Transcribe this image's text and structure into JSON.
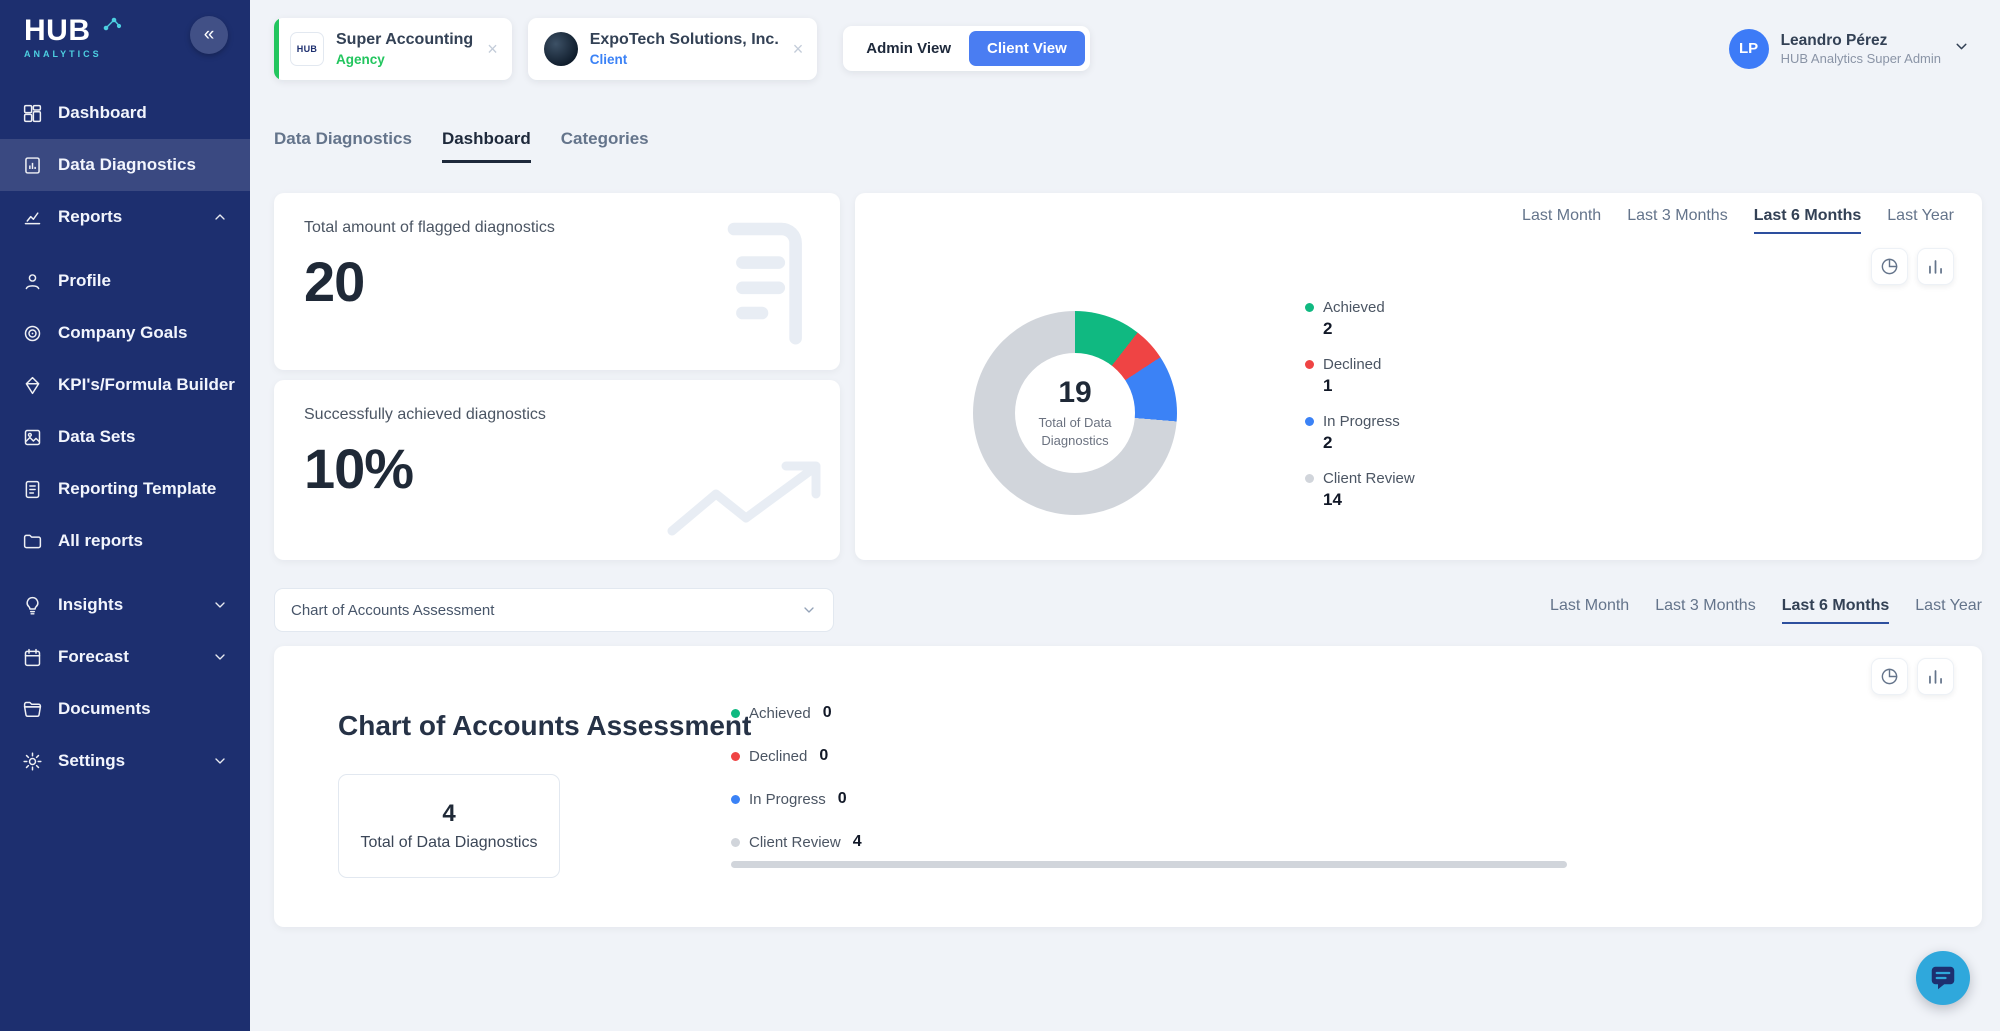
{
  "colors": {
    "sidebar_bg": "#1d2f6f",
    "client_view_bg": "#4a7df2",
    "agency_green": "#22c55e",
    "client_blue": "#3b82f6",
    "achieved_green": "#10b981",
    "declined_red": "#ef4444",
    "in_progress_blue": "#3b82f6",
    "client_review_gray": "#d1d5db",
    "fab_bg": "#2fa8dc"
  },
  "sidebar": {
    "logo_title": "HUB",
    "logo_subtitle": "ANALYTICS",
    "collapse_icon": "«",
    "items": [
      {
        "label": "Dashboard"
      },
      {
        "label": "Data Diagnostics"
      },
      {
        "label": "Reports"
      },
      {
        "label": "Profile"
      },
      {
        "label": "Company Goals"
      },
      {
        "label": "KPI's/Formula Builder"
      },
      {
        "label": "Data Sets"
      },
      {
        "label": "Reporting Template"
      },
      {
        "label": "All reports"
      },
      {
        "label": "Insights"
      },
      {
        "label": "Forecast"
      },
      {
        "label": "Documents"
      },
      {
        "label": "Settings"
      }
    ],
    "active_item": "Data Diagnostics"
  },
  "header": {
    "agency_chip": {
      "logo_text": "HUB",
      "title": "Super Accounting",
      "subtitle": "Agency",
      "close": "×"
    },
    "client_chip": {
      "title": "ExpoTech Solutions, Inc.",
      "subtitle": "Client",
      "close": "×"
    },
    "view_toggle": {
      "admin_label": "Admin View",
      "client_label": "Client View",
      "active": "Client View"
    },
    "user": {
      "initials": "LP",
      "name": "Leandro Pérez",
      "role": "HUB Analytics Super Admin"
    }
  },
  "tabs": {
    "items": [
      {
        "label": "Data Diagnostics"
      },
      {
        "label": "Dashboard"
      },
      {
        "label": "Categories"
      }
    ],
    "active": "Dashboard"
  },
  "time_filters": {
    "items": [
      "Last Month",
      "Last 3 Months",
      "Last 6 Months",
      "Last Year"
    ],
    "active": "Last 6 Months"
  },
  "stats": {
    "flagged_label": "Total amount of flagged diagnostics",
    "flagged_value": "20",
    "achieved_label": "Successfully achieved diagnostics",
    "achieved_value": "10%"
  },
  "assessment_select": {
    "value": "Chart of Accounts Assessment"
  },
  "chart_data": [
    {
      "type": "pie",
      "title": "Total of Data Diagnostics",
      "total": 19,
      "center_label": "Total of Data Diagnostics",
      "categories": [
        "Achieved",
        "Declined",
        "In Progress",
        "Client Review"
      ],
      "values": [
        2,
        1,
        2,
        14
      ],
      "colors": [
        "#10b981",
        "#ef4444",
        "#3b82f6",
        "#d1d5db"
      ],
      "legend_position": "right",
      "time_filter": "Last 6 Months"
    },
    {
      "type": "bar",
      "title": "Chart of Accounts Assessment",
      "total": 4,
      "total_label": "Total of Data Diagnostics",
      "categories": [
        "Achieved",
        "Declined",
        "In Progress",
        "Client Review"
      ],
      "values": [
        0,
        0,
        0,
        4
      ],
      "colors": [
        "#10b981",
        "#ef4444",
        "#3b82f6",
        "#d1d5db"
      ],
      "time_filter": "Last 6 Months"
    }
  ]
}
